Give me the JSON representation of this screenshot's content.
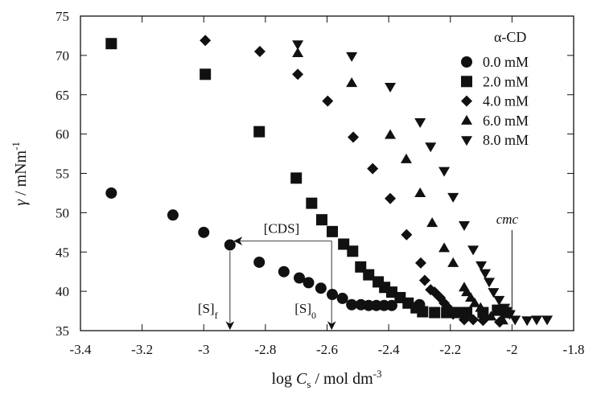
{
  "chart_data": {
    "type": "scatter",
    "xlabel": {
      "prefix": "log ",
      "var": "C",
      "sub": "s",
      "unit": " / mol dm",
      "sup": "-3"
    },
    "ylabel": {
      "var": "γ",
      "unit": " / mNm",
      "sup": "-1"
    },
    "xlim": [
      -3.4,
      -1.8
    ],
    "ylim": [
      35,
      75
    ],
    "xticks": [
      -3.4,
      -3.2,
      -3,
      -2.8,
      -2.6,
      -2.4,
      -2.2,
      -2,
      -1.8
    ],
    "yticks": [
      35,
      40,
      45,
      50,
      55,
      60,
      65,
      70,
      75
    ],
    "grid": false,
    "legend": {
      "title": "α-CD",
      "placement": "top-right"
    },
    "series": [
      {
        "name": "0.0 mM",
        "marker": "circle",
        "points": [
          [
            -3.3,
            52.5
          ],
          [
            -3.1,
            49.7
          ],
          [
            -3.0,
            47.5
          ],
          [
            -2.915,
            45.9
          ],
          [
            -2.82,
            43.7
          ],
          [
            -2.74,
            42.5
          ],
          [
            -2.69,
            41.7
          ],
          [
            -2.66,
            41.1
          ],
          [
            -2.62,
            40.4
          ],
          [
            -2.583,
            39.6
          ],
          [
            -2.55,
            39.1
          ],
          [
            -2.52,
            38.3
          ],
          [
            -2.49,
            38.3
          ],
          [
            -2.465,
            38.2
          ],
          [
            -2.44,
            38.2
          ],
          [
            -2.415,
            38.2
          ],
          [
            -2.39,
            38.2
          ],
          [
            -2.3,
            38.3
          ]
        ]
      },
      {
        "name": "2.0 mM",
        "marker": "square",
        "points": [
          [
            -3.3,
            71.5
          ],
          [
            -2.995,
            67.6
          ],
          [
            -2.82,
            60.3
          ],
          [
            -2.7,
            54.4
          ],
          [
            -2.65,
            51.2
          ],
          [
            -2.617,
            49.1
          ],
          [
            -2.583,
            47.6
          ],
          [
            -2.546,
            46.0
          ],
          [
            -2.517,
            45.1
          ],
          [
            -2.491,
            43.1
          ],
          [
            -2.465,
            42.1
          ],
          [
            -2.434,
            41.2
          ],
          [
            -2.413,
            40.5
          ],
          [
            -2.39,
            39.9
          ],
          [
            -2.363,
            39.2
          ],
          [
            -2.337,
            38.5
          ],
          [
            -2.311,
            37.9
          ],
          [
            -2.29,
            37.4
          ],
          [
            -2.251,
            37.3
          ],
          [
            -2.212,
            37.3
          ],
          [
            -2.173,
            37.3
          ],
          [
            -2.147,
            37.3
          ],
          [
            -2.094,
            37.3
          ],
          [
            -2.047,
            37.6
          ],
          [
            -2.02,
            37.3
          ]
        ]
      },
      {
        "name": "4.0 mM",
        "marker": "diamond",
        "points": [
          [
            -2.995,
            71.9
          ],
          [
            -2.818,
            70.5
          ],
          [
            -2.695,
            67.6
          ],
          [
            -2.598,
            64.2
          ],
          [
            -2.515,
            59.6
          ],
          [
            -2.452,
            55.6
          ],
          [
            -2.395,
            51.8
          ],
          [
            -2.342,
            47.2
          ],
          [
            -2.296,
            43.6
          ],
          [
            -2.283,
            41.4
          ],
          [
            -2.264,
            40.2
          ],
          [
            -2.251,
            39.9
          ],
          [
            -2.233,
            39.2
          ],
          [
            -2.22,
            38.5
          ],
          [
            -2.207,
            37.9
          ],
          [
            -2.191,
            37.1
          ],
          [
            -2.155,
            36.4
          ],
          [
            -2.126,
            36.4
          ],
          [
            -2.094,
            36.3
          ],
          [
            -2.04,
            36.1
          ]
        ]
      },
      {
        "name": "6.0 mM",
        "marker": "triangle-up",
        "points": [
          [
            -2.695,
            70.3
          ],
          [
            -2.52,
            66.5
          ],
          [
            -2.395,
            59.9
          ],
          [
            -2.343,
            56.8
          ],
          [
            -2.298,
            52.5
          ],
          [
            -2.259,
            48.7
          ],
          [
            -2.22,
            45.5
          ],
          [
            -2.191,
            43.6
          ],
          [
            -2.155,
            40.5
          ],
          [
            -2.147,
            39.9
          ],
          [
            -2.134,
            39.2
          ],
          [
            -2.121,
            38.5
          ],
          [
            -2.102,
            37.9
          ],
          [
            -2.068,
            36.8
          ],
          [
            -2.03,
            36.3
          ]
        ]
      },
      {
        "name": "8.0 mM",
        "marker": "triangle-down",
        "points": [
          [
            -2.695,
            71.4
          ],
          [
            -2.52,
            69.9
          ],
          [
            -2.395,
            66.0
          ],
          [
            -2.298,
            61.5
          ],
          [
            -2.264,
            58.4
          ],
          [
            -2.22,
            55.3
          ],
          [
            -2.191,
            52.0
          ],
          [
            -2.155,
            48.4
          ],
          [
            -2.126,
            45.3
          ],
          [
            -2.1,
            43.3
          ],
          [
            -2.087,
            42.3
          ],
          [
            -2.074,
            41.2
          ],
          [
            -2.06,
            39.9
          ],
          [
            -2.042,
            38.9
          ],
          [
            -2.024,
            37.9
          ],
          [
            -2.008,
            37.1
          ],
          [
            -1.99,
            36.4
          ],
          [
            -1.951,
            36.3
          ],
          [
            -1.92,
            36.4
          ],
          [
            -1.886,
            36.4
          ]
        ]
      }
    ],
    "annotations": {
      "cds": {
        "text": "[CDS]",
        "y": 46.4,
        "x_from": -2.585,
        "x_to": -2.9
      },
      "s0": {
        "text": "[S]",
        "sub": "0",
        "x": -2.585
      },
      "sf": {
        "text": "[S]",
        "sub": "f",
        "x": -2.915,
        "y_from": 45.9
      },
      "cmc": {
        "text": "cmc",
        "x": -2.0,
        "y_from": 47.8,
        "y_to": 36.8
      }
    }
  }
}
